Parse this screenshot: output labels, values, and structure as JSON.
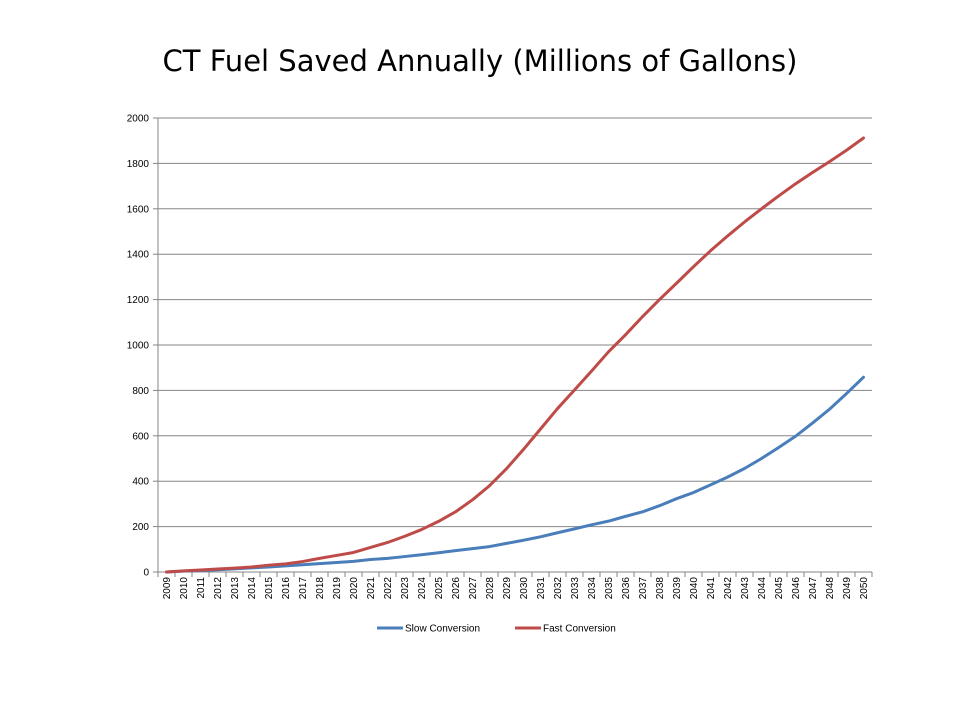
{
  "chart_data": {
    "type": "line",
    "title": "CT Fuel Saved Annually (Millions of Gallons)",
    "xlabel": "",
    "ylabel": "",
    "ylim": [
      0,
      2000
    ],
    "yticks": [
      0,
      200,
      400,
      600,
      800,
      1000,
      1200,
      1400,
      1600,
      1800,
      2000
    ],
    "grid": true,
    "legend_position": "bottom",
    "categories": [
      "2009",
      "2010",
      "2011",
      "2012",
      "2013",
      "2014",
      "2015",
      "2016",
      "2017",
      "2018",
      "2019",
      "2020",
      "2021",
      "2022",
      "2023",
      "2024",
      "2025",
      "2026",
      "2027",
      "2028",
      "2029",
      "2030",
      "2031",
      "2032",
      "2033",
      "2034",
      "2035",
      "2036",
      "2037",
      "2038",
      "2039",
      "2040",
      "2041",
      "2042",
      "2043",
      "2044",
      "2045",
      "2046",
      "2047",
      "2048",
      "2049",
      "2050"
    ],
    "series": [
      {
        "name": "Slow Conversion",
        "color": "#4a7ebb",
        "values": [
          0,
          4,
          7,
          10,
          14,
          18,
          22,
          27,
          32,
          37,
          42,
          47,
          55,
          60,
          68,
          76,
          85,
          94,
          103,
          112,
          126,
          140,
          155,
          173,
          190,
          208,
          224,
          245,
          265,
          292,
          323,
          350,
          384,
          418,
          456,
          500,
          548,
          598,
          656,
          717,
          786,
          858
        ]
      },
      {
        "name": "Fast Conversion",
        "color": "#be4b48",
        "values": [
          0,
          5,
          9,
          13,
          17,
          22,
          30,
          36,
          46,
          60,
          73,
          86,
          108,
          130,
          157,
          187,
          223,
          265,
          318,
          380,
          455,
          540,
          630,
          720,
          802,
          885,
          970,
          1045,
          1125,
          1200,
          1272,
          1345,
          1415,
          1480,
          1542,
          1600,
          1656,
          1710,
          1760,
          1808,
          1858,
          1912
        ]
      }
    ]
  }
}
